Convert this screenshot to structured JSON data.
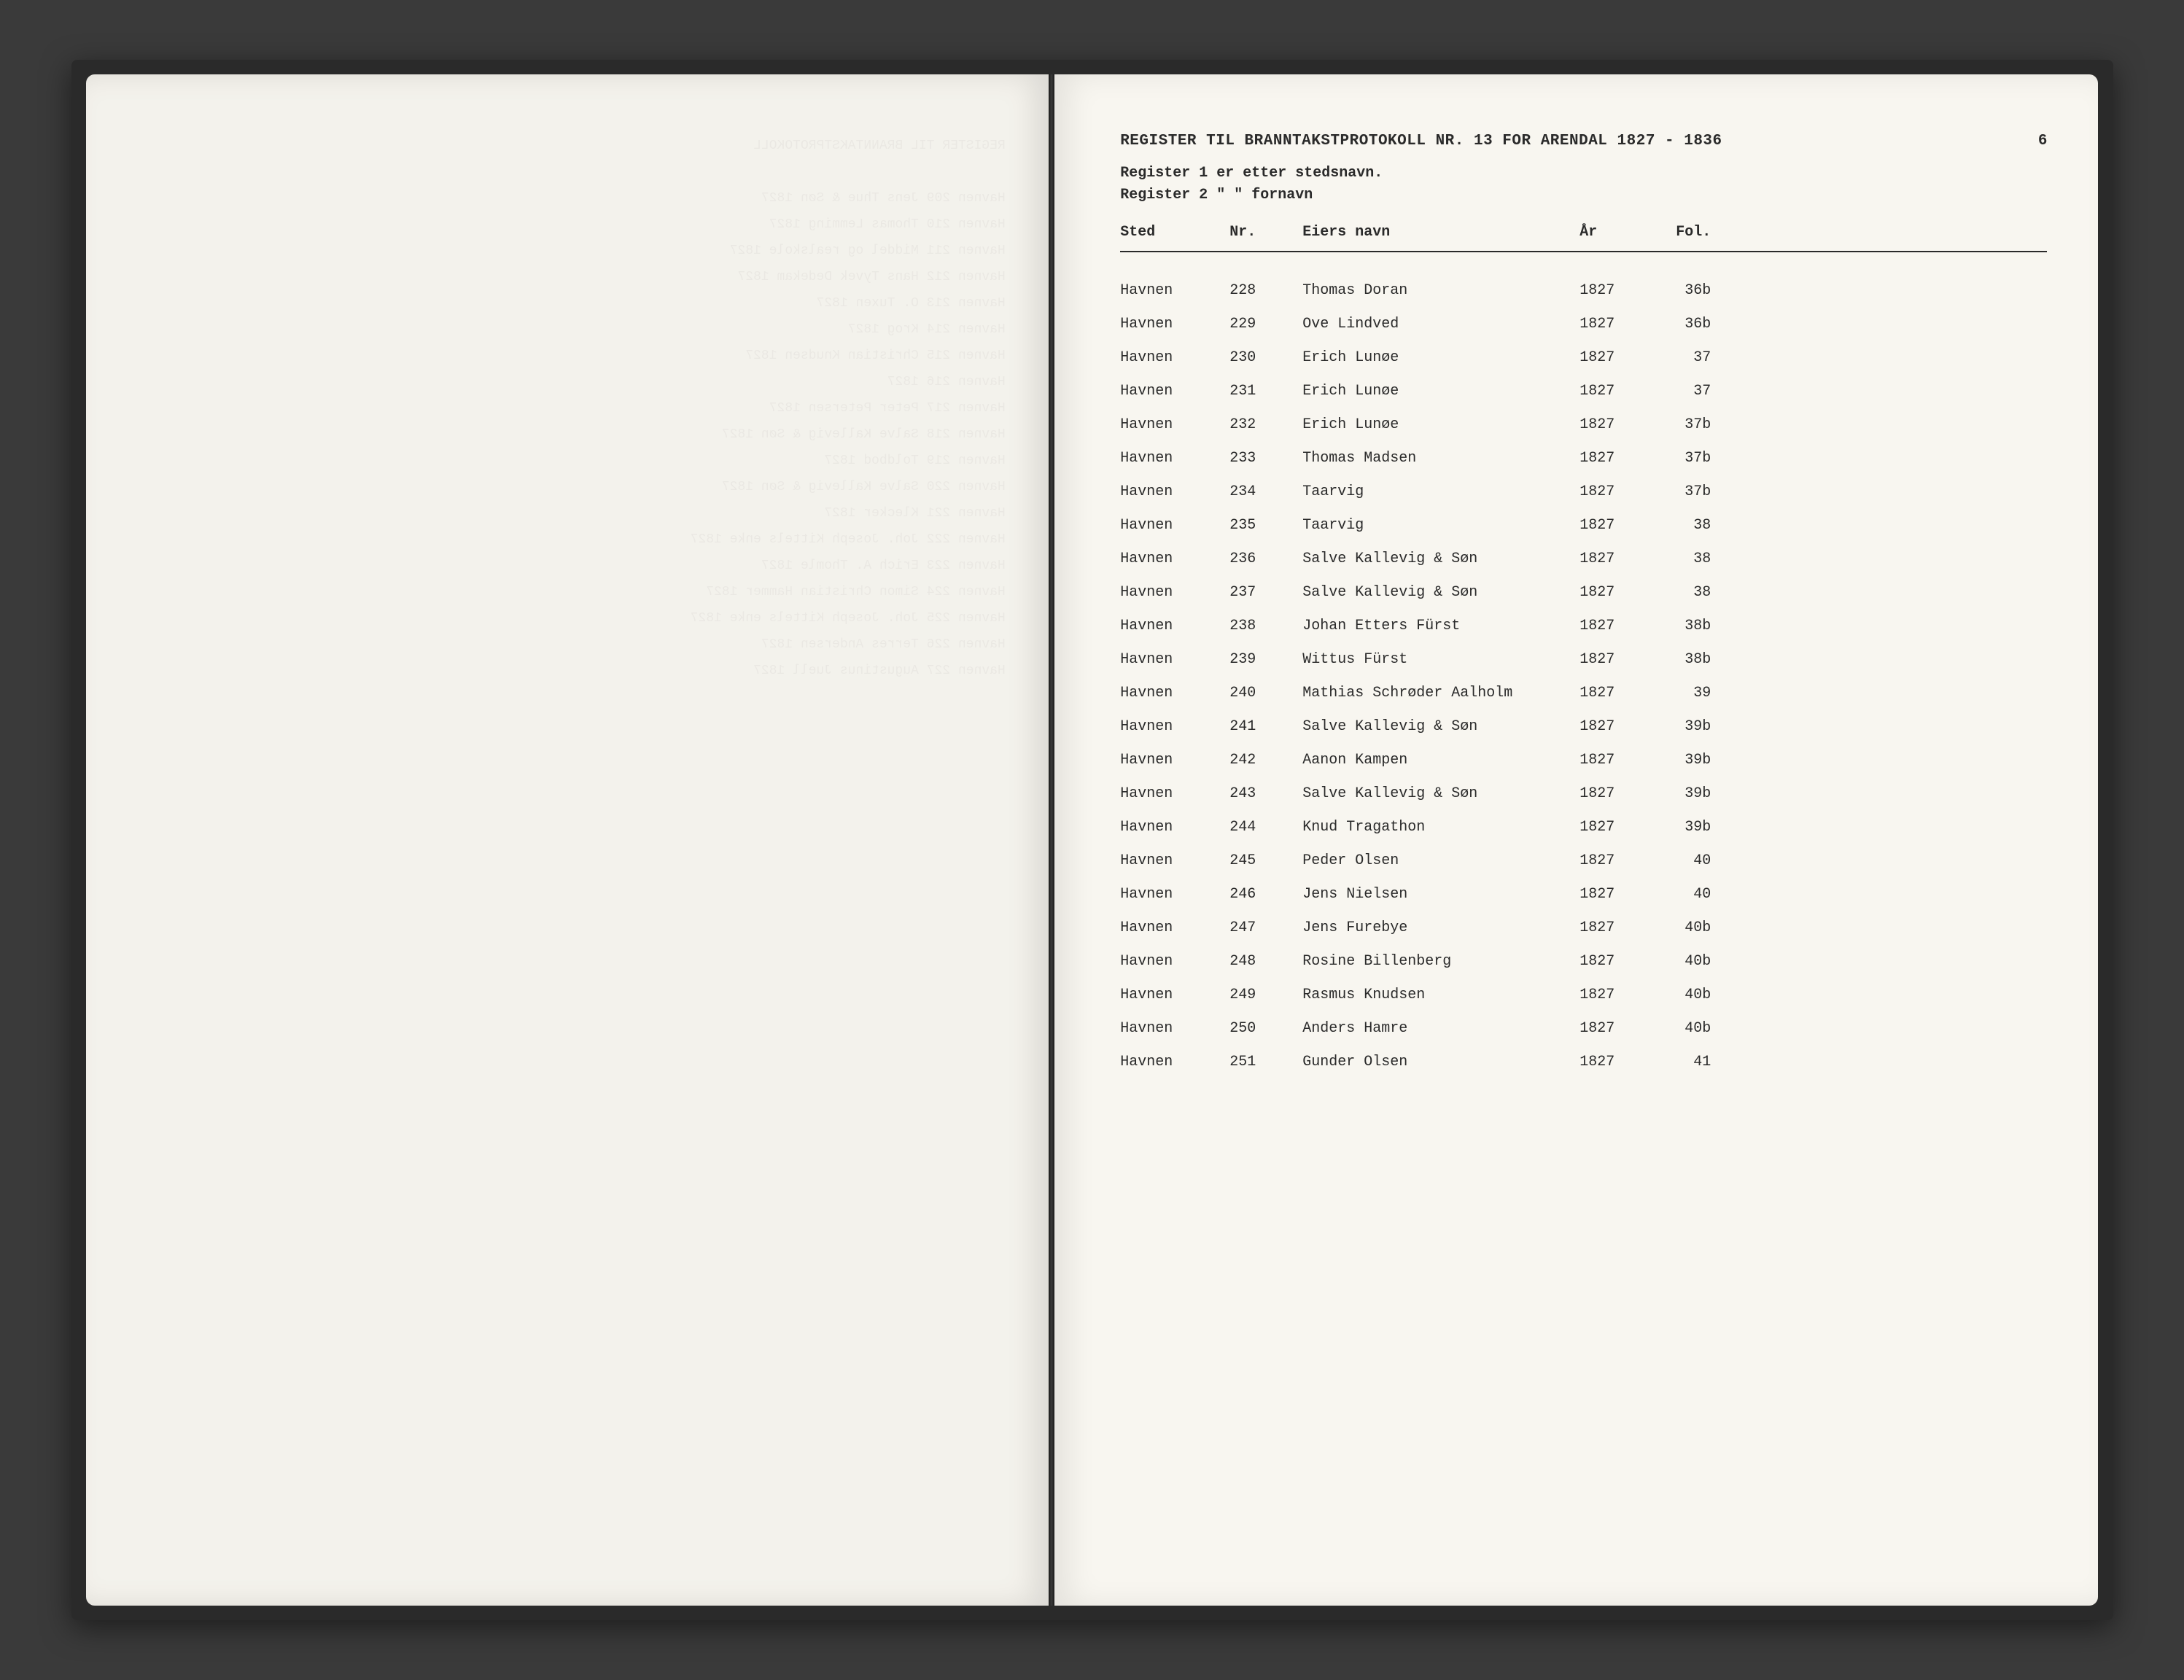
{
  "document": {
    "title": "REGISTER TIL BRANNTAKSTPROTOKOLL NR. 13 FOR ARENDAL 1827 - 1836",
    "page_number": "6",
    "subtitle_line1": "Register 1 er etter stedsnavn.",
    "subtitle_line2": "Register 2 \"     \"   fornavn",
    "columns": {
      "sted": "Sted",
      "nr": "Nr.",
      "navn": "Eiers navn",
      "aar": "År",
      "fol": "Fol."
    },
    "rows": [
      {
        "sted": "Havnen",
        "nr": "228",
        "navn": "Thomas Doran",
        "aar": "1827",
        "fol": "36b"
      },
      {
        "sted": "Havnen",
        "nr": "229",
        "navn": "Ove Lindved",
        "aar": "1827",
        "fol": "36b"
      },
      {
        "sted": "Havnen",
        "nr": "230",
        "navn": "Erich Lunøe",
        "aar": "1827",
        "fol": "37"
      },
      {
        "sted": "Havnen",
        "nr": "231",
        "navn": "Erich Lunøe",
        "aar": "1827",
        "fol": "37"
      },
      {
        "sted": "Havnen",
        "nr": "232",
        "navn": "Erich Lunøe",
        "aar": "1827",
        "fol": "37b"
      },
      {
        "sted": "Havnen",
        "nr": "233",
        "navn": "Thomas Madsen",
        "aar": "1827",
        "fol": "37b"
      },
      {
        "sted": "Havnen",
        "nr": "234",
        "navn": "Taarvig",
        "aar": "1827",
        "fol": "37b"
      },
      {
        "sted": "Havnen",
        "nr": "235",
        "navn": "Taarvig",
        "aar": "1827",
        "fol": "38"
      },
      {
        "sted": "Havnen",
        "nr": "236",
        "navn": "Salve Kallevig & Søn",
        "aar": "1827",
        "fol": "38"
      },
      {
        "sted": "Havnen",
        "nr": "237",
        "navn": "Salve Kallevig & Søn",
        "aar": "1827",
        "fol": "38"
      },
      {
        "sted": "Havnen",
        "nr": "238",
        "navn": "Johan Etters Fürst",
        "aar": "1827",
        "fol": "38b"
      },
      {
        "sted": "Havnen",
        "nr": "239",
        "navn": "Wittus Fürst",
        "aar": "1827",
        "fol": "38b"
      },
      {
        "sted": "Havnen",
        "nr": "240",
        "navn": "Mathias Schrøder Aalholm",
        "aar": "1827",
        "fol": "39"
      },
      {
        "sted": "Havnen",
        "nr": "241",
        "navn": "Salve Kallevig & Søn",
        "aar": "1827",
        "fol": "39b"
      },
      {
        "sted": "Havnen",
        "nr": "242",
        "navn": "Aanon Kampen",
        "aar": "1827",
        "fol": "39b"
      },
      {
        "sted": "Havnen",
        "nr": "243",
        "navn": "Salve Kallevig & Søn",
        "aar": "1827",
        "fol": "39b"
      },
      {
        "sted": "Havnen",
        "nr": "244",
        "navn": "Knud Tragathon",
        "aar": "1827",
        "fol": "39b"
      },
      {
        "sted": "Havnen",
        "nr": "245",
        "navn": "Peder Olsen",
        "aar": "1827",
        "fol": "40"
      },
      {
        "sted": "Havnen",
        "nr": "246",
        "navn": "Jens Nielsen",
        "aar": "1827",
        "fol": "40"
      },
      {
        "sted": "Havnen",
        "nr": "247",
        "navn": "Jens Furebye",
        "aar": "1827",
        "fol": "40b"
      },
      {
        "sted": "Havnen",
        "nr": "248",
        "navn": "Rosine Billenberg",
        "aar": "1827",
        "fol": "40b"
      },
      {
        "sted": "Havnen",
        "nr": "249",
        "navn": "Rasmus Knudsen",
        "aar": "1827",
        "fol": "40b"
      },
      {
        "sted": "Havnen",
        "nr": "250",
        "navn": "Anders Hamre",
        "aar": "1827",
        "fol": "40b"
      },
      {
        "sted": "Havnen",
        "nr": "251",
        "navn": "Gunder Olsen",
        "aar": "1827",
        "fol": "41"
      }
    ]
  },
  "styling": {
    "background_color": "#3a3a3a",
    "page_color": "#f8f6f0",
    "text_color": "#2a2a2a",
    "font_family": "Courier New",
    "title_fontsize": 21,
    "body_fontsize": 20,
    "row_spacing": 9
  }
}
